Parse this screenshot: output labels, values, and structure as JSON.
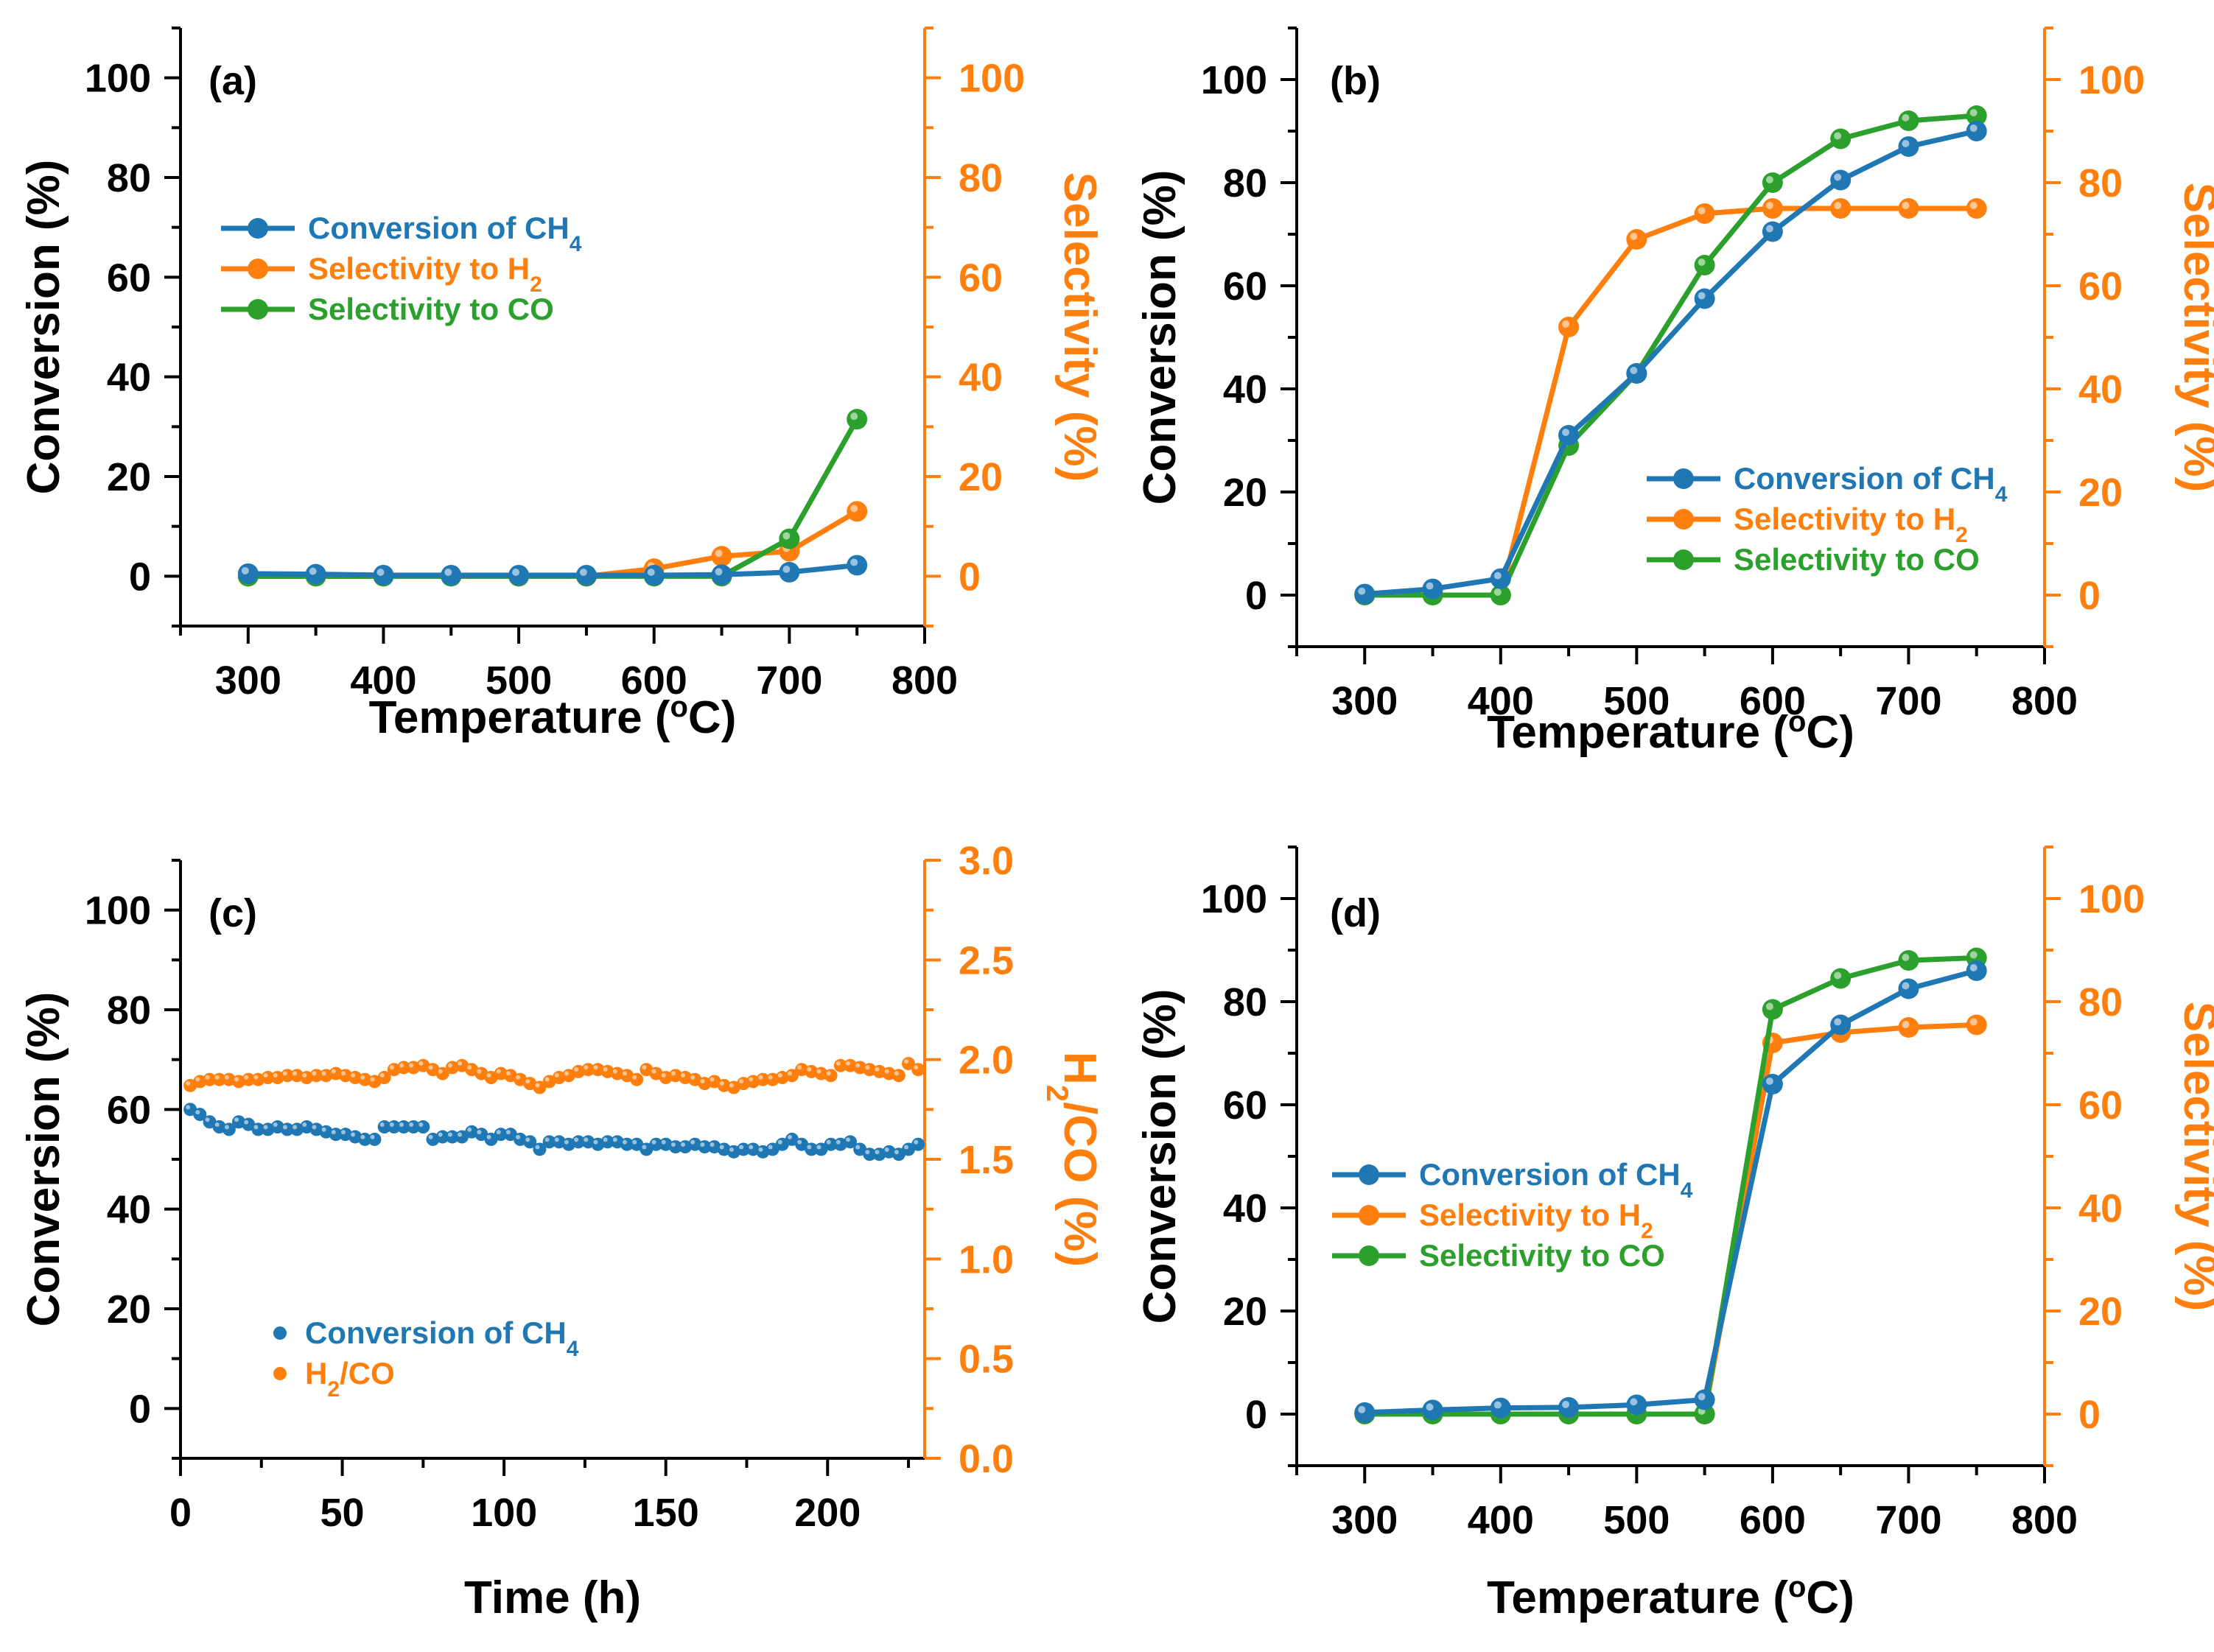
{
  "colors": {
    "ch4": "#1f77b4",
    "h2": "#ff7f0e",
    "co": "#2ca02c",
    "axis_right": "#ff7f0e"
  },
  "chart_data": [
    {
      "id": "a",
      "type": "line",
      "panel_label": "(a)",
      "xlabel": "Temperature (oC)",
      "ylabel": "Conversion (%)",
      "y2label": "Selectivity (%)",
      "xlim": [
        250,
        800
      ],
      "ylim": [
        -10,
        110
      ],
      "y2lim": [
        -10,
        110
      ],
      "xticks": [
        "300",
        "400",
        "500",
        "600",
        "700",
        "800"
      ],
      "yticks": [
        "0",
        "20",
        "40",
        "60",
        "80",
        "100"
      ],
      "y2ticks": [
        "0",
        "20",
        "40",
        "60",
        "80",
        "100"
      ],
      "x": [
        300,
        350,
        400,
        450,
        500,
        550,
        600,
        650,
        700,
        750
      ],
      "legend_position": "upper-left",
      "series": [
        {
          "name": "Conversion of CH4",
          "name_base": "Conversion of CH",
          "name_sub": "4",
          "color_key": "ch4",
          "axis": "left",
          "values": [
            0.5,
            0.4,
            0.2,
            0.2,
            0.2,
            0.2,
            0.2,
            0.3,
            0.8,
            2.2
          ]
        },
        {
          "name": "Selectivity to H2",
          "name_base": "Selectivity to H",
          "name_sub": "2",
          "color_key": "h2",
          "axis": "right",
          "values": [
            0,
            0,
            0,
            0,
            0,
            0,
            1.5,
            4,
            5,
            13
          ]
        },
        {
          "name": "Selectivity to CO",
          "name_base": "Selectivity to CO",
          "name_sub": "",
          "color_key": "co",
          "axis": "right",
          "values": [
            0,
            0,
            0,
            0,
            0,
            0,
            0,
            0,
            7.5,
            31.5
          ]
        }
      ]
    },
    {
      "id": "b",
      "type": "line",
      "panel_label": "(b)",
      "xlabel": "Temperature (oC)",
      "ylabel": "Conversion (%)",
      "y2label": "Selectivity (%)",
      "xlim": [
        250,
        800
      ],
      "ylim": [
        -10,
        110
      ],
      "y2lim": [
        -10,
        110
      ],
      "xticks": [
        "300",
        "400",
        "500",
        "600",
        "700",
        "800"
      ],
      "yticks": [
        "0",
        "20",
        "40",
        "60",
        "80",
        "100"
      ],
      "y2ticks": [
        "0",
        "20",
        "40",
        "60",
        "80",
        "100"
      ],
      "x": [
        300,
        350,
        400,
        450,
        500,
        550,
        600,
        650,
        700,
        750
      ],
      "legend_position": "lower-right",
      "series": [
        {
          "name": "Conversion of CH4",
          "name_base": "Conversion of CH",
          "name_sub": "4",
          "color_key": "ch4",
          "axis": "left",
          "values": [
            0.2,
            1.2,
            3.2,
            31,
            43,
            57.5,
            70.5,
            80.5,
            87,
            90
          ]
        },
        {
          "name": "Selectivity to H2",
          "name_base": "Selectivity to H",
          "name_sub": "2",
          "color_key": "h2",
          "axis": "right",
          "values": [
            0,
            0,
            0,
            52,
            69,
            74,
            75,
            75,
            75,
            75
          ]
        },
        {
          "name": "Selectivity to CO",
          "name_base": "Selectivity to CO",
          "name_sub": "",
          "color_key": "co",
          "axis": "right",
          "values": [
            0,
            0,
            0,
            29,
            43,
            64,
            80,
            88.5,
            92,
            93
          ]
        }
      ]
    },
    {
      "id": "c",
      "type": "scatter",
      "panel_label": "(c)",
      "xlabel": "Time (h)",
      "ylabel": "Conversion (%)",
      "y2label": "H2/CO (%)",
      "y2label_parts": [
        "H",
        "2",
        "/CO (%)"
      ],
      "xlim": [
        0,
        230
      ],
      "ylim": [
        -10,
        110
      ],
      "y2lim": [
        0,
        3
      ],
      "xticks": [
        "0",
        "50",
        "100",
        "150",
        "200"
      ],
      "xtick_values": [
        0,
        50,
        100,
        150,
        200
      ],
      "yticks": [
        "0",
        "20",
        "40",
        "60",
        "80",
        "100"
      ],
      "y2ticks": [
        "0.0",
        "0.5",
        "1.0",
        "1.5",
        "2.0",
        "2.5",
        "3.0"
      ],
      "legend_position": "lower-left",
      "x": [
        3,
        6,
        9,
        12,
        15,
        18,
        21,
        24,
        27,
        30,
        33,
        36,
        39,
        42,
        45,
        48,
        51,
        54,
        57,
        60,
        63,
        66,
        69,
        72,
        75,
        78,
        81,
        84,
        87,
        90,
        93,
        96,
        99,
        102,
        105,
        108,
        111,
        114,
        117,
        120,
        123,
        126,
        129,
        132,
        135,
        138,
        141,
        144,
        147,
        150,
        153,
        156,
        159,
        162,
        165,
        168,
        171,
        174,
        177,
        180,
        183,
        186,
        189,
        192,
        195,
        198,
        201,
        204,
        207,
        210,
        213,
        216,
        219,
        222,
        225,
        228
      ],
      "series": [
        {
          "name": "Conversion of CH4",
          "name_base": "Conversion of CH",
          "name_sub": "4",
          "color_key": "ch4",
          "axis": "left",
          "values": [
            60,
            59,
            57.5,
            56.5,
            56,
            57.5,
            57,
            56,
            56,
            56.5,
            56,
            56,
            56.5,
            56,
            55.5,
            55,
            55,
            54.5,
            54,
            54,
            56.5,
            56.5,
            56.5,
            56.5,
            56.5,
            54,
            54.5,
            54.5,
            54.5,
            55.5,
            55,
            54,
            55,
            55,
            54,
            53.5,
            52,
            53.5,
            53.5,
            53,
            53.5,
            53.5,
            53,
            53.5,
            53.5,
            53,
            53,
            52,
            53,
            53,
            52.5,
            52.5,
            53,
            52.5,
            52.5,
            52,
            51.5,
            52,
            52,
            51.5,
            52,
            53,
            54,
            53,
            52,
            52,
            53,
            53,
            53.5,
            52,
            51,
            51,
            51.5,
            51,
            52,
            53
          ]
        },
        {
          "name": "H2/CO",
          "name_base": "H",
          "name_sub": "2",
          "name_tail": "/CO",
          "color_key": "h2",
          "axis": "right",
          "values": [
            1.87,
            1.89,
            1.9,
            1.9,
            1.9,
            1.89,
            1.9,
            1.9,
            1.91,
            1.91,
            1.92,
            1.92,
            1.91,
            1.92,
            1.92,
            1.93,
            1.92,
            1.91,
            1.9,
            1.89,
            1.91,
            1.95,
            1.96,
            1.96,
            1.97,
            1.95,
            1.93,
            1.96,
            1.97,
            1.95,
            1.93,
            1.91,
            1.93,
            1.92,
            1.9,
            1.88,
            1.86,
            1.89,
            1.91,
            1.92,
            1.94,
            1.95,
            1.95,
            1.94,
            1.93,
            1.92,
            1.9,
            1.95,
            1.93,
            1.91,
            1.92,
            1.91,
            1.9,
            1.88,
            1.89,
            1.87,
            1.86,
            1.88,
            1.89,
            1.9,
            1.9,
            1.91,
            1.92,
            1.95,
            1.94,
            1.93,
            1.92,
            1.97,
            1.97,
            1.96,
            1.95,
            1.94,
            1.93,
            1.92,
            1.98,
            1.95
          ]
        }
      ]
    },
    {
      "id": "d",
      "type": "line",
      "panel_label": "(d)",
      "xlabel": "Temperature (oC)",
      "ylabel": "Conversion (%)",
      "y2label": "Selectivity (%)",
      "xlim": [
        250,
        800
      ],
      "ylim": [
        -10,
        110
      ],
      "y2lim": [
        -10,
        110
      ],
      "xticks": [
        "300",
        "400",
        "500",
        "600",
        "700",
        "800"
      ],
      "yticks": [
        "0",
        "20",
        "40",
        "60",
        "80",
        "100"
      ],
      "y2ticks": [
        "0",
        "20",
        "40",
        "60",
        "80",
        "100"
      ],
      "x": [
        300,
        350,
        400,
        450,
        500,
        550,
        600,
        650,
        700,
        750
      ],
      "legend_position": "center-left",
      "series": [
        {
          "name": "Conversion of CH4",
          "name_base": "Conversion of CH",
          "name_sub": "4",
          "color_key": "ch4",
          "axis": "left",
          "values": [
            0.3,
            0.8,
            1.2,
            1.3,
            1.8,
            2.8,
            64,
            75.5,
            82.5,
            86
          ]
        },
        {
          "name": "Selectivity to H2",
          "name_base": "Selectivity to H",
          "name_sub": "2",
          "color_key": "h2",
          "axis": "right",
          "values": [
            0,
            0,
            0,
            0,
            0,
            0,
            72,
            74,
            75,
            75.5
          ]
        },
        {
          "name": "Selectivity to CO",
          "name_base": "Selectivity to CO",
          "name_sub": "",
          "color_key": "co",
          "axis": "right",
          "values": [
            0,
            0,
            0,
            0,
            0,
            0,
            78.5,
            84.5,
            88,
            88.5
          ]
        }
      ]
    }
  ]
}
